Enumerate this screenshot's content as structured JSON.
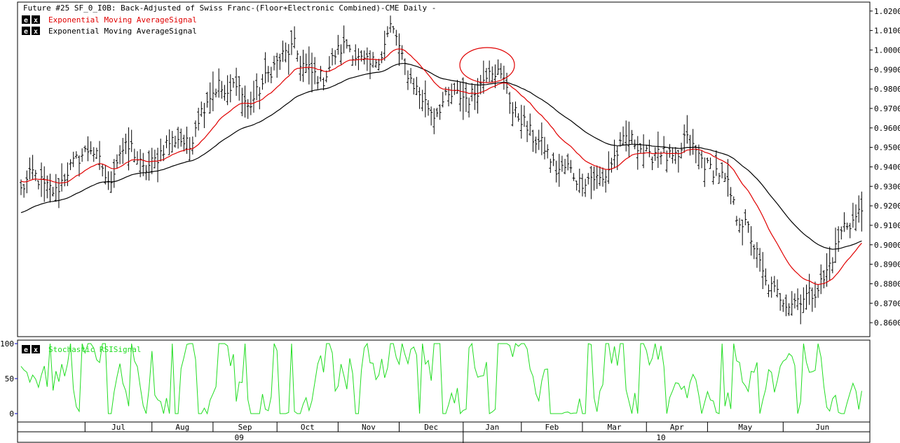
{
  "chart_data": [
    {
      "type": "ohlc-bar",
      "title": "Future #25 SF_0_I0B: Back-Adjusted of Swiss Franc-(Floor+Electronic Combined)-CME Daily -",
      "legend": [
        {
          "buttons": [
            "e",
            "x"
          ],
          "label": "Exponential Moving AverageSignal",
          "color": "#e00000"
        },
        {
          "buttons": [
            "e",
            "x"
          ],
          "label": "Exponential Moving AverageSignal",
          "color": "#000000"
        }
      ],
      "ylim": [
        0.855,
        1.021
      ],
      "yticks": [
        "1.0200",
        "1.0100",
        "1.0000",
        "0.9900",
        "0.9800",
        "0.9700",
        "0.9600",
        "0.9500",
        "0.9400",
        "0.9300",
        "0.9200",
        "0.9100",
        "0.9000",
        "0.8900",
        "0.8800",
        "0.8700",
        "0.8600"
      ],
      "ytick_values": [
        1.02,
        1.01,
        1.0,
        0.99,
        0.98,
        0.97,
        0.96,
        0.95,
        0.94,
        0.93,
        0.92,
        0.91,
        0.9,
        0.89,
        0.88,
        0.87,
        0.86
      ],
      "months": [
        "Jul",
        "Aug",
        "Sep",
        "Oct",
        "Nov",
        "Dec",
        "Jan",
        "Feb",
        "Mar",
        "Apr",
        "May",
        "Jun"
      ],
      "years": [
        "09",
        "10"
      ],
      "price_anchors": [
        {
          "i": 0,
          "v": 0.928
        },
        {
          "i": 4,
          "v": 0.937
        },
        {
          "i": 8,
          "v": 0.93
        },
        {
          "i": 12,
          "v": 0.927
        },
        {
          "i": 16,
          "v": 0.938
        },
        {
          "i": 20,
          "v": 0.945
        },
        {
          "i": 24,
          "v": 0.95
        },
        {
          "i": 28,
          "v": 0.94
        },
        {
          "i": 30,
          "v": 0.93
        },
        {
          "i": 34,
          "v": 0.948
        },
        {
          "i": 38,
          "v": 0.95
        },
        {
          "i": 42,
          "v": 0.938
        },
        {
          "i": 46,
          "v": 0.943
        },
        {
          "i": 50,
          "v": 0.952
        },
        {
          "i": 54,
          "v": 0.955
        },
        {
          "i": 58,
          "v": 0.95
        },
        {
          "i": 60,
          "v": 0.962
        },
        {
          "i": 64,
          "v": 0.975
        },
        {
          "i": 68,
          "v": 0.982
        },
        {
          "i": 71,
          "v": 0.975
        },
        {
          "i": 74,
          "v": 0.985
        },
        {
          "i": 78,
          "v": 0.97
        },
        {
          "i": 82,
          "v": 0.98
        },
        {
          "i": 86,
          "v": 0.99
        },
        {
          "i": 90,
          "v": 0.997
        },
        {
          "i": 94,
          "v": 1.002
        },
        {
          "i": 96,
          "v": 0.994
        },
        {
          "i": 100,
          "v": 0.988
        },
        {
          "i": 104,
          "v": 0.985
        },
        {
          "i": 108,
          "v": 0.998
        },
        {
          "i": 112,
          "v": 1.003
        },
        {
          "i": 116,
          "v": 0.995
        },
        {
          "i": 120,
          "v": 0.992
        },
        {
          "i": 124,
          "v": 0.998
        },
        {
          "i": 127,
          "v": 1.012
        },
        {
          "i": 129,
          "v": 1.007
        },
        {
          "i": 131,
          "v": 0.995
        },
        {
          "i": 134,
          "v": 0.985
        },
        {
          "i": 138,
          "v": 0.975
        },
        {
          "i": 142,
          "v": 0.967
        },
        {
          "i": 146,
          "v": 0.975
        },
        {
          "i": 150,
          "v": 0.977
        },
        {
          "i": 154,
          "v": 0.975
        },
        {
          "i": 158,
          "v": 0.982
        },
        {
          "i": 161,
          "v": 0.992
        },
        {
          "i": 164,
          "v": 0.988
        },
        {
          "i": 167,
          "v": 0.982
        },
        {
          "i": 169,
          "v": 0.968
        },
        {
          "i": 172,
          "v": 0.965
        },
        {
          "i": 176,
          "v": 0.955
        },
        {
          "i": 180,
          "v": 0.95
        },
        {
          "i": 184,
          "v": 0.938
        },
        {
          "i": 188,
          "v": 0.94
        },
        {
          "i": 192,
          "v": 0.932
        },
        {
          "i": 196,
          "v": 0.935
        },
        {
          "i": 200,
          "v": 0.933
        },
        {
          "i": 204,
          "v": 0.945
        },
        {
          "i": 208,
          "v": 0.955
        },
        {
          "i": 212,
          "v": 0.952
        },
        {
          "i": 216,
          "v": 0.944
        },
        {
          "i": 219,
          "v": 0.95
        },
        {
          "i": 222,
          "v": 0.945
        },
        {
          "i": 226,
          "v": 0.943
        },
        {
          "i": 228,
          "v": 0.955
        },
        {
          "i": 232,
          "v": 0.948
        },
        {
          "i": 236,
          "v": 0.94
        },
        {
          "i": 240,
          "v": 0.937
        },
        {
          "i": 243,
          "v": 0.93
        },
        {
          "i": 246,
          "v": 0.915
        },
        {
          "i": 250,
          "v": 0.908
        },
        {
          "i": 253,
          "v": 0.895
        },
        {
          "i": 256,
          "v": 0.88
        },
        {
          "i": 260,
          "v": 0.875
        },
        {
          "i": 264,
          "v": 0.87
        },
        {
          "i": 268,
          "v": 0.873
        },
        {
          "i": 272,
          "v": 0.875
        },
        {
          "i": 276,
          "v": 0.882
        },
        {
          "i": 280,
          "v": 0.898
        },
        {
          "i": 283,
          "v": 0.91
        },
        {
          "i": 286,
          "v": 0.912
        },
        {
          "i": 289,
          "v": 0.918
        }
      ]
    },
    {
      "type": "line",
      "legend": [
        {
          "buttons": [
            "e",
            "x"
          ],
          "label": "Stochastic RSISignal",
          "color": "#22dd22"
        }
      ],
      "ylim": [
        0,
        100
      ],
      "yticks": [
        "100",
        "50",
        "0"
      ],
      "ytick_values": [
        100,
        50,
        0
      ]
    }
  ],
  "colors": {
    "background": "#ffffff",
    "price_bars": "#000000",
    "ema_fast": "#e00000",
    "ema_slow": "#000000",
    "stoch_rsi": "#22dd22",
    "highlight_circle": "#e00000",
    "blue_tick": "#0000cc"
  }
}
